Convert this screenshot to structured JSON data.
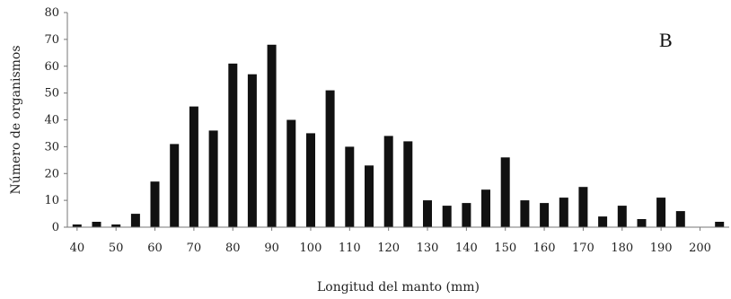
{
  "chart_data": {
    "type": "bar",
    "panel_label": "B",
    "title": "",
    "xlabel": "Longitud del manto (mm)",
    "ylabel": "Número de organismos",
    "ylim": [
      0,
      80
    ],
    "yticks": [
      0,
      10,
      20,
      30,
      40,
      50,
      60,
      70,
      80
    ],
    "xticks": [
      40,
      50,
      60,
      70,
      80,
      90,
      100,
      110,
      120,
      130,
      140,
      150,
      160,
      170,
      180,
      190,
      200
    ],
    "grid": false,
    "bar_color": "#111111",
    "categories": [
      40,
      45,
      50,
      55,
      60,
      65,
      70,
      75,
      80,
      85,
      90,
      95,
      100,
      105,
      110,
      115,
      120,
      125,
      130,
      135,
      140,
      145,
      150,
      155,
      160,
      165,
      170,
      175,
      180,
      185,
      190,
      195,
      200,
      205
    ],
    "values": [
      1,
      2,
      1,
      5,
      17,
      31,
      45,
      36,
      61,
      57,
      68,
      40,
      35,
      51,
      30,
      23,
      34,
      32,
      10,
      8,
      9,
      14,
      26,
      10,
      9,
      11,
      15,
      4,
      8,
      3,
      11,
      6,
      0,
      2
    ]
  }
}
